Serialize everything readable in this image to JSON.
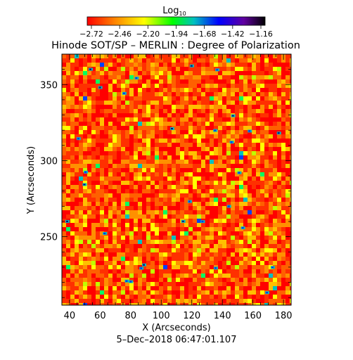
{
  "chart_data": {
    "type": "heatmap",
    "title": "Hinode SOT/SP – MERLIN : Degree of Polarization",
    "colorbar": {
      "label_main": "Log",
      "label_sub": "10",
      "ticks": [
        "−2.72",
        "−2.46",
        "−2.20",
        "−1.94",
        "−1.68",
        "−1.42",
        "−1.16"
      ],
      "range": [
        -2.72,
        -1.16
      ],
      "colormap": [
        "#ff0000",
        "#ff8000",
        "#ffff00",
        "#00ff00",
        "#00c0c0",
        "#0000ff",
        "#6000a0",
        "#000000"
      ]
    },
    "xlabel": "X (Arcseconds)",
    "ylabel": "Y (Arcseconds)",
    "xlim": [
      35,
      185
    ],
    "ylim": [
      205,
      370
    ],
    "xticks": [
      "40",
      "60",
      "80",
      "100",
      "120",
      "140",
      "160",
      "180"
    ],
    "yticks": [
      "250",
      "300",
      "350"
    ],
    "xtick_values": [
      40,
      60,
      80,
      100,
      120,
      140,
      160,
      180
    ],
    "ytick_values": [
      250,
      300,
      350
    ],
    "date": "5–Dec–2018 06:47:01.107"
  }
}
